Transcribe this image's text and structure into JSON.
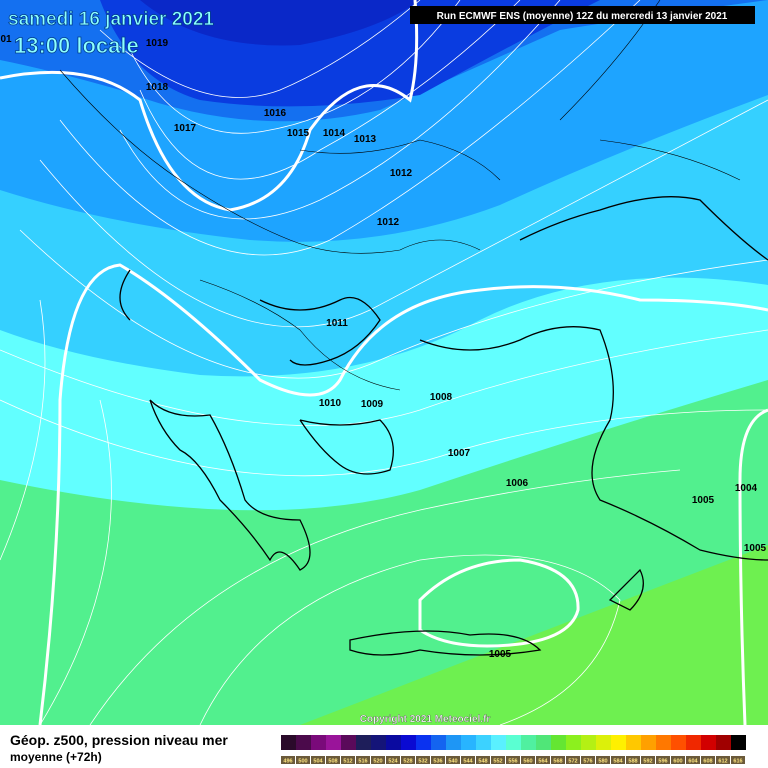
{
  "header": {
    "date": "samedi 16 janvier 2021",
    "time": "13:00 locale",
    "run": "Run ECMWF ENS (moyenne) 12Z du mercredi 13 janvier 2021"
  },
  "isobar_labels": [
    "01",
    "1019",
    "1018",
    "1017",
    "1016",
    "1015",
    "1014",
    "1013",
    "1012",
    "1012",
    "1011",
    "1010",
    "1009",
    "1008",
    "1007",
    "1006",
    "1005",
    "1004",
    "1005",
    "1005"
  ],
  "copyright": "Copyright 2021 Meteociel.fr",
  "footer": {
    "title": "Géop. z500, pression niveau mer",
    "subtitle": "moyenne  (+72h)"
  },
  "legend": [
    {
      "label": 496,
      "color": "#2a0a2a"
    },
    {
      "label": 500,
      "color": "#4b0a4b"
    },
    {
      "label": 504,
      "color": "#7a0a7a"
    },
    {
      "label": 508,
      "color": "#9a149a"
    },
    {
      "label": 512,
      "color": "#5a0a5a"
    },
    {
      "label": 516,
      "color": "#1e1e5a"
    },
    {
      "label": 520,
      "color": "#141478"
    },
    {
      "label": 524,
      "color": "#0a0aa0"
    },
    {
      "label": 528,
      "color": "#0a0ad2"
    },
    {
      "label": 532,
      "color": "#0a32f0"
    },
    {
      "label": 536,
      "color": "#1464f0"
    },
    {
      "label": 540,
      "color": "#1e96f5"
    },
    {
      "label": 544,
      "color": "#28b4ff"
    },
    {
      "label": 548,
      "color": "#3cd2ff"
    },
    {
      "label": 552,
      "color": "#5af0ff"
    },
    {
      "label": 556,
      "color": "#5affd2"
    },
    {
      "label": 560,
      "color": "#50f0a0"
    },
    {
      "label": 564,
      "color": "#50e678"
    },
    {
      "label": 568,
      "color": "#64e632"
    },
    {
      "label": 572,
      "color": "#8cf01e"
    },
    {
      "label": 576,
      "color": "#b4f014"
    },
    {
      "label": 580,
      "color": "#dcf00a"
    },
    {
      "label": 584,
      "color": "#fff000"
    },
    {
      "label": 588,
      "color": "#ffc800"
    },
    {
      "label": 592,
      "color": "#ffa000"
    },
    {
      "label": 596,
      "color": "#ff7800"
    },
    {
      "label": 600,
      "color": "#ff5000"
    },
    {
      "label": 604,
      "color": "#f02800"
    },
    {
      "label": 608,
      "color": "#d20000"
    },
    {
      "label": 612,
      "color": "#a00000"
    },
    {
      "label": 616,
      "color": "#000000"
    }
  ]
}
